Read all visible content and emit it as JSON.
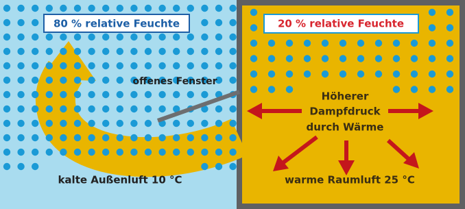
{
  "labels": {
    "outside_humidity": "80 % relative Feuchte",
    "inside_humidity": "20 % relative Feuchte",
    "window": "offenes Fenster",
    "pressure_line1": "Höherer",
    "pressure_line2": "Dampfdruck",
    "pressure_line3": "durch Wärme",
    "outside_temp": "kalte Außenluft 10 °C",
    "inside_temp": "warme Raumluft 25 °C"
  }
}
